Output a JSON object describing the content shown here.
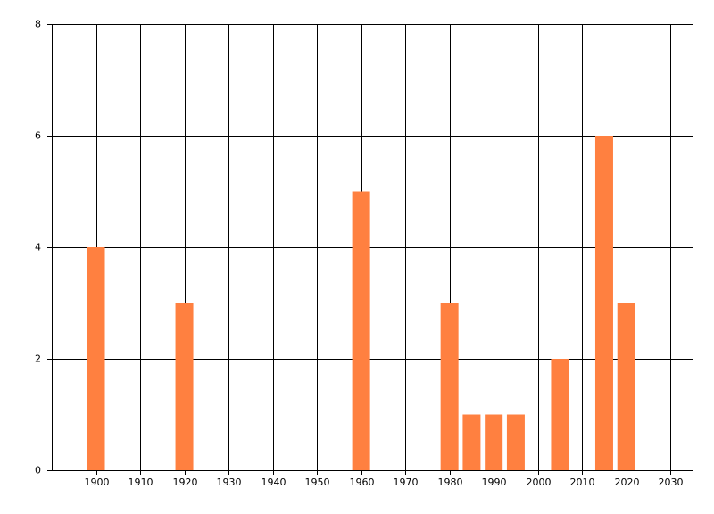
{
  "chart_data": {
    "type": "bar",
    "x": [
      1900,
      1920,
      1960,
      1980,
      1985,
      1990,
      1995,
      2005,
      2015,
      2020
    ],
    "values": [
      4,
      3,
      5,
      3,
      1,
      1,
      1,
      2,
      6,
      3
    ],
    "color": "#ff8040",
    "xlim": [
      1890,
      2035
    ],
    "xticks": [
      1900,
      1910,
      1920,
      1930,
      1940,
      1950,
      1960,
      1970,
      1980,
      1990,
      2000,
      2010,
      2020,
      2030
    ],
    "ylim": [
      0,
      8
    ],
    "yticks": [
      0,
      2,
      4,
      6,
      8
    ],
    "grid": true
  }
}
